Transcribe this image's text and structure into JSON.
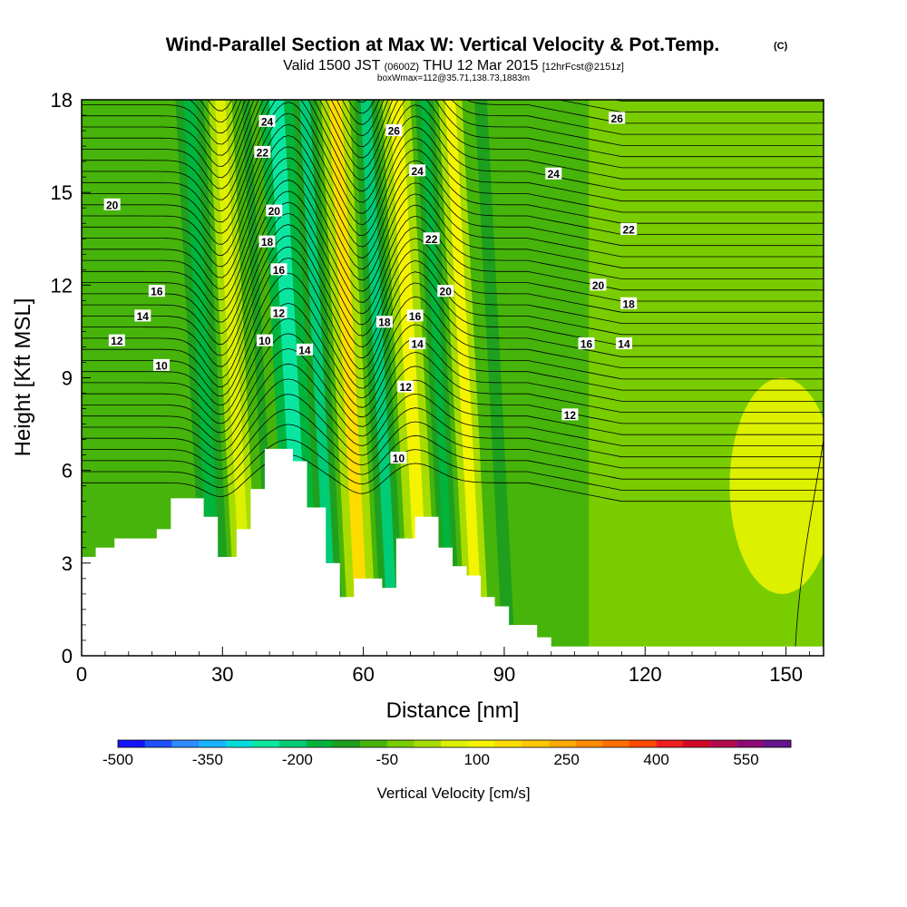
{
  "header": {
    "title": "Wind-Parallel Section at Max W: Vertical Velocity & Pot.Temp.",
    "title_mark": "(C)",
    "subtitle_main_a": "Valid 1500 JST ",
    "subtitle_small_a": "(0600Z)",
    "subtitle_main_b": " THU 12 Mar 2015 ",
    "subtitle_small_b": "[12hrFcst@2151z]",
    "subtitle_line2": "boxWmax=112@35.71,138.73,1883m"
  },
  "chart_data": {
    "type": "contour",
    "xlabel": "Distance [nm]",
    "ylabel": "Height [Kft MSL]",
    "xlim": [
      0,
      158
    ],
    "ylim": [
      0,
      18
    ],
    "x_ticks": [
      0,
      30,
      60,
      90,
      120,
      150
    ],
    "y_ticks": [
      0,
      3,
      6,
      9,
      12,
      15,
      18
    ],
    "x_tick_labels": [
      "0",
      "30",
      "60",
      "90",
      "120",
      "150"
    ],
    "y_tick_labels": [
      "0",
      "3",
      "6",
      "9",
      "12",
      "15",
      "18"
    ],
    "terrain": [
      [
        0,
        3.2
      ],
      [
        3,
        3.5
      ],
      [
        7,
        3.8
      ],
      [
        16,
        4.1
      ],
      [
        19,
        5.1
      ],
      [
        26,
        4.5
      ],
      [
        29,
        3.2
      ],
      [
        33,
        4.1
      ],
      [
        36,
        5.4
      ],
      [
        39,
        6.7
      ],
      [
        45,
        6.3
      ],
      [
        48,
        4.8
      ],
      [
        52,
        3.0
      ],
      [
        55,
        1.9
      ],
      [
        58,
        2.5
      ],
      [
        64,
        2.2
      ],
      [
        67,
        3.8
      ],
      [
        71,
        4.5
      ],
      [
        76,
        3.5
      ],
      [
        79,
        2.9
      ],
      [
        82,
        2.6
      ],
      [
        85,
        1.9
      ],
      [
        88,
        1.6
      ],
      [
        91,
        1.0
      ],
      [
        97,
        0.6
      ],
      [
        100,
        0.3
      ],
      [
        158,
        0.3
      ]
    ],
    "velocity_bands": [
      {
        "x": [
          20,
          26
        ],
        "w": -150
      },
      {
        "x": [
          27,
          32
        ],
        "w": 130
      },
      {
        "x": [
          33,
          37
        ],
        "w": -60
      },
      {
        "x": [
          38,
          45
        ],
        "w": -230
      },
      {
        "x": [
          45,
          50
        ],
        "w": -170
      },
      {
        "x": [
          51,
          57
        ],
        "w": 200
      },
      {
        "x": [
          58,
          63
        ],
        "w": -160
      },
      {
        "x": [
          64,
          70
        ],
        "w": 160
      },
      {
        "x": [
          71,
          75
        ],
        "w": -140
      },
      {
        "x": [
          76,
          81
        ],
        "w": 180
      },
      {
        "x": [
          82,
          88
        ],
        "w": -70
      }
    ],
    "broad_regions": [
      {
        "x": [
          0,
          20
        ],
        "w": -30
      },
      {
        "x": [
          88,
          108
        ],
        "w": -20
      },
      {
        "x": [
          108,
          158
        ],
        "w": 40
      },
      {
        "x": [
          138,
          158
        ],
        "y": [
          2,
          9
        ],
        "w": 100
      }
    ],
    "contour_labels": [
      {
        "text": "24",
        "x": 39.5,
        "y": 17.3
      },
      {
        "text": "22",
        "x": 38.5,
        "y": 16.3
      },
      {
        "text": "20",
        "x": 41,
        "y": 14.4
      },
      {
        "text": "18",
        "x": 39.5,
        "y": 13.4
      },
      {
        "text": "16",
        "x": 42,
        "y": 12.5
      },
      {
        "text": "12",
        "x": 42,
        "y": 11.1
      },
      {
        "text": "10",
        "x": 39,
        "y": 10.2
      },
      {
        "text": "14",
        "x": 47.5,
        "y": 9.9
      },
      {
        "text": "26",
        "x": 66.5,
        "y": 17.0
      },
      {
        "text": "24",
        "x": 71.5,
        "y": 15.7
      },
      {
        "text": "22",
        "x": 74.5,
        "y": 13.5
      },
      {
        "text": "20",
        "x": 77.5,
        "y": 11.8
      },
      {
        "text": "18",
        "x": 64.5,
        "y": 10.8
      },
      {
        "text": "16",
        "x": 71,
        "y": 11.0
      },
      {
        "text": "14",
        "x": 71.5,
        "y": 10.1
      },
      {
        "text": "12",
        "x": 69,
        "y": 8.7
      },
      {
        "text": "10",
        "x": 67.5,
        "y": 6.4
      },
      {
        "text": "20",
        "x": 6.5,
        "y": 14.6
      },
      {
        "text": "16",
        "x": 16,
        "y": 11.8
      },
      {
        "text": "14",
        "x": 13,
        "y": 11.0
      },
      {
        "text": "12",
        "x": 7.5,
        "y": 10.2
      },
      {
        "text": "10",
        "x": 17,
        "y": 9.4
      },
      {
        "text": "26",
        "x": 114,
        "y": 17.4
      },
      {
        "text": "24",
        "x": 100.5,
        "y": 15.6
      },
      {
        "text": "22",
        "x": 116.5,
        "y": 13.8
      },
      {
        "text": "20",
        "x": 110,
        "y": 12.0
      },
      {
        "text": "18",
        "x": 116.5,
        "y": 11.4
      },
      {
        "text": "16",
        "x": 107.5,
        "y": 10.1
      },
      {
        "text": "14",
        "x": 115.5,
        "y": 10.1
      },
      {
        "text": "12",
        "x": 104,
        "y": 7.8
      }
    ],
    "colorbar": {
      "label": "Vertical Velocity [cm/s]",
      "tick_labels": [
        "-500",
        "-350",
        "-200",
        "-50",
        "100",
        "250",
        "400",
        "550"
      ],
      "tick_values": [
        -500,
        -350,
        -200,
        -50,
        100,
        250,
        400,
        550
      ],
      "min": -500,
      "max": 625,
      "step": 50,
      "colors": [
        "#1414ff",
        "#1e50ff",
        "#2d8cff",
        "#18b4ff",
        "#00dcdc",
        "#0ae6a0",
        "#00cc78",
        "#00b43c",
        "#1ea01e",
        "#46b40a",
        "#78cc00",
        "#a8dc00",
        "#dcf000",
        "#f4f400",
        "#ffdc00",
        "#ffc800",
        "#ffaa00",
        "#ff8c00",
        "#ff6e00",
        "#ff4800",
        "#f01e1e",
        "#d20a28",
        "#b40a50",
        "#8c0a78",
        "#64148c"
      ]
    }
  }
}
